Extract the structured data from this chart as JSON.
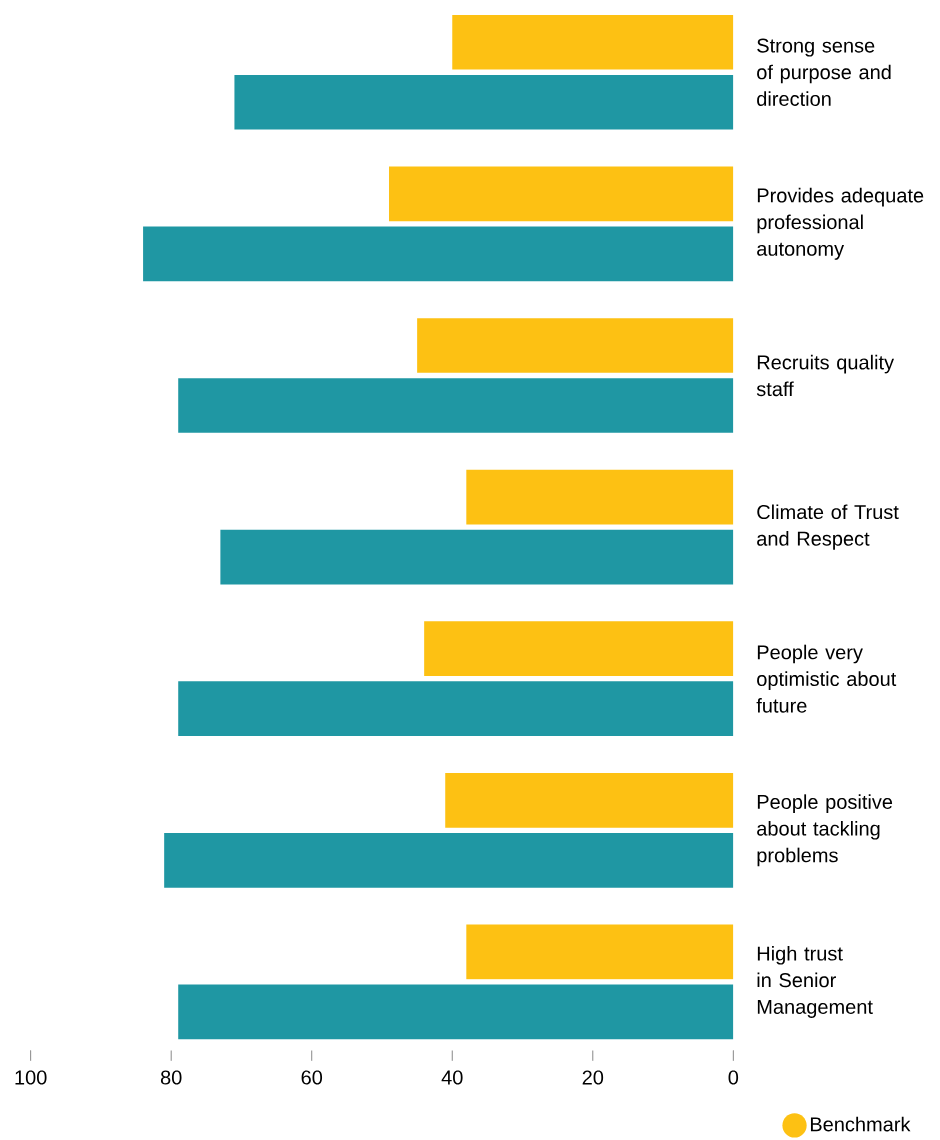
{
  "chart_data": {
    "type": "bar",
    "orientation": "horizontal",
    "categories": [
      "Strong sense of purpose and direction",
      "Provides adequate professional autonomy",
      "Recruits quality staff",
      "Climate of Trust and Respect",
      "People very optimistic about future",
      "People positive about tackling problems",
      "High trust in Senior Management"
    ],
    "series": [
      {
        "color": "#1f97a3",
        "values": [
          71,
          84,
          79,
          73,
          79,
          81,
          79
        ]
      },
      {
        "name": "Benchmark",
        "color": "#fdc113",
        "values": [
          40,
          49,
          45,
          38,
          44,
          41,
          38
        ]
      }
    ],
    "xlim": [
      100,
      0
    ],
    "xticks": [
      100,
      80,
      60,
      40,
      20,
      0
    ],
    "grid": false,
    "legend": "bottom right"
  }
}
